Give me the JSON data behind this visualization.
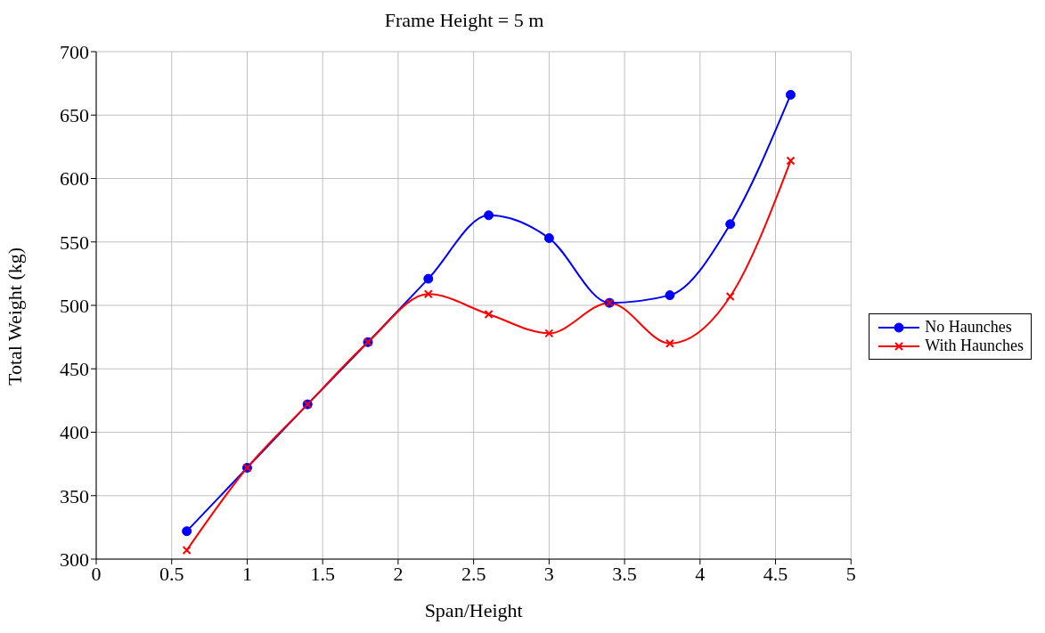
{
  "chart_data": {
    "type": "line",
    "title": "Frame Height = 5 m",
    "xlabel": "Span/Height",
    "ylabel": "Total Weight (kg)",
    "x": [
      0.6,
      1.0,
      1.4,
      1.8,
      2.2,
      2.6,
      3.0,
      3.4,
      3.8,
      4.2,
      4.6
    ],
    "series": [
      {
        "name": "No Haunches",
        "color": "#0000ff",
        "marker": "circle",
        "values": [
          322,
          372,
          422,
          471,
          521,
          571,
          553,
          502,
          508,
          564,
          666
        ]
      },
      {
        "name": "With Haunches",
        "color": "#ff0000",
        "marker": "cross",
        "values": [
          307,
          372,
          422,
          471,
          509,
          493,
          478,
          502,
          470,
          507,
          614
        ]
      }
    ],
    "xlim": [
      0,
      5
    ],
    "xticks": [
      0,
      0.5,
      1,
      1.5,
      2,
      2.5,
      3,
      3.5,
      4,
      4.5,
      5
    ],
    "ylim": [
      300,
      700
    ],
    "yticks": [
      300,
      350,
      400,
      450,
      500,
      550,
      600,
      650,
      700
    ],
    "grid": true,
    "legend": "right"
  }
}
